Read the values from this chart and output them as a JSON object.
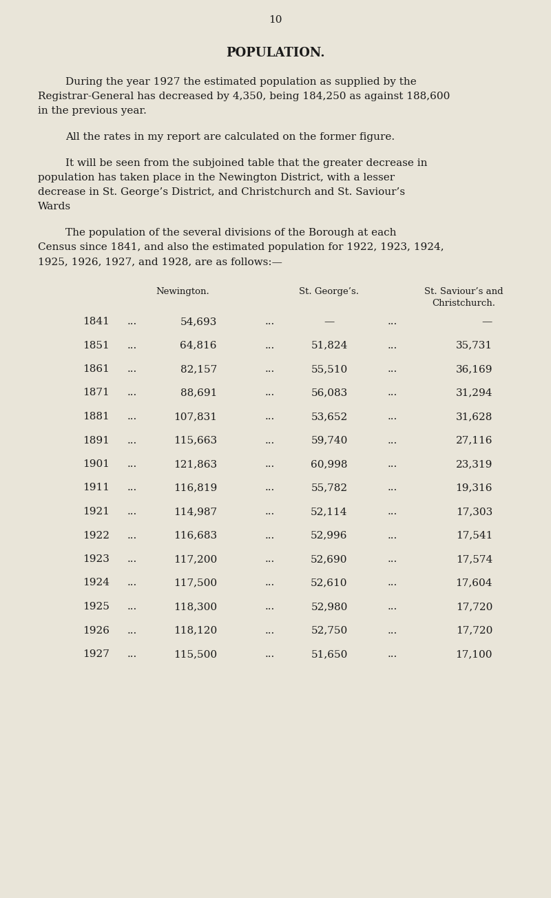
{
  "page_number": "10",
  "background_color": "#e9e5d9",
  "title": "POPULATION.",
  "p1_line1": "During the year 1927 the estimated population as supplied by the",
  "p1_line2": "Registrar-General has decreased by 4,350, being 184,250 as against 188,600",
  "p1_line3": "in the previous year.",
  "p2": "All the rates in my report are calculated on the former figure.",
  "p3_line1": "It will be seen from the subjoined table that the greater decrease in",
  "p3_line2": "population has taken place in the Newington District, with a lesser",
  "p3_line3": "decrease in St. George’s District, and Christchurch and St. Saviour’s",
  "p3_line4": "Wards",
  "p4_line1": "The population of the several divisions of the Borough at each",
  "p4_line2": "Census since 1841, and also the estimated population for 1922, 1923, 1924,",
  "p4_line3": "1925, 1926, 1927, and 1928, are as follows:—",
  "col_h1": "Newington.",
  "col_h2": "St. George’s.",
  "col_h3a": "St. Saviour’s and",
  "col_h3b": "Christchurch.",
  "table_rows": [
    [
      "1841",
      "54,693",
      "—",
      "—"
    ],
    [
      "1851",
      "64,816",
      "51,824",
      "35,731"
    ],
    [
      "1861",
      "82,157",
      "55,510",
      "36,169"
    ],
    [
      "1871",
      "88,691",
      "56,083",
      "31,294"
    ],
    [
      "1881",
      "107,831",
      "53,652",
      "31,628"
    ],
    [
      "1891",
      "115,663",
      "59,740",
      "27,116"
    ],
    [
      "1901",
      "121,863",
      "60,998",
      "23,319"
    ],
    [
      "1911",
      "116,819",
      "55,782",
      "19,316"
    ],
    [
      "1921",
      "114,987",
      "52,114",
      "17,303"
    ],
    [
      "1922",
      "116,683",
      "52,996",
      "17,541"
    ],
    [
      "1923",
      "117,200",
      "52,690",
      "17,574"
    ],
    [
      "1924",
      "117,500",
      "52,610",
      "17,604"
    ],
    [
      "1925",
      "118,300",
      "52,980",
      "17,720"
    ],
    [
      "1926",
      "118,120",
      "52,750",
      "17,720"
    ],
    [
      "1927",
      "115,500",
      "51,650",
      "17,100"
    ]
  ],
  "text_color": "#1a1a1a",
  "dots": "...",
  "fig_w": 8.0,
  "fig_h": 13.04,
  "dpi": 100
}
